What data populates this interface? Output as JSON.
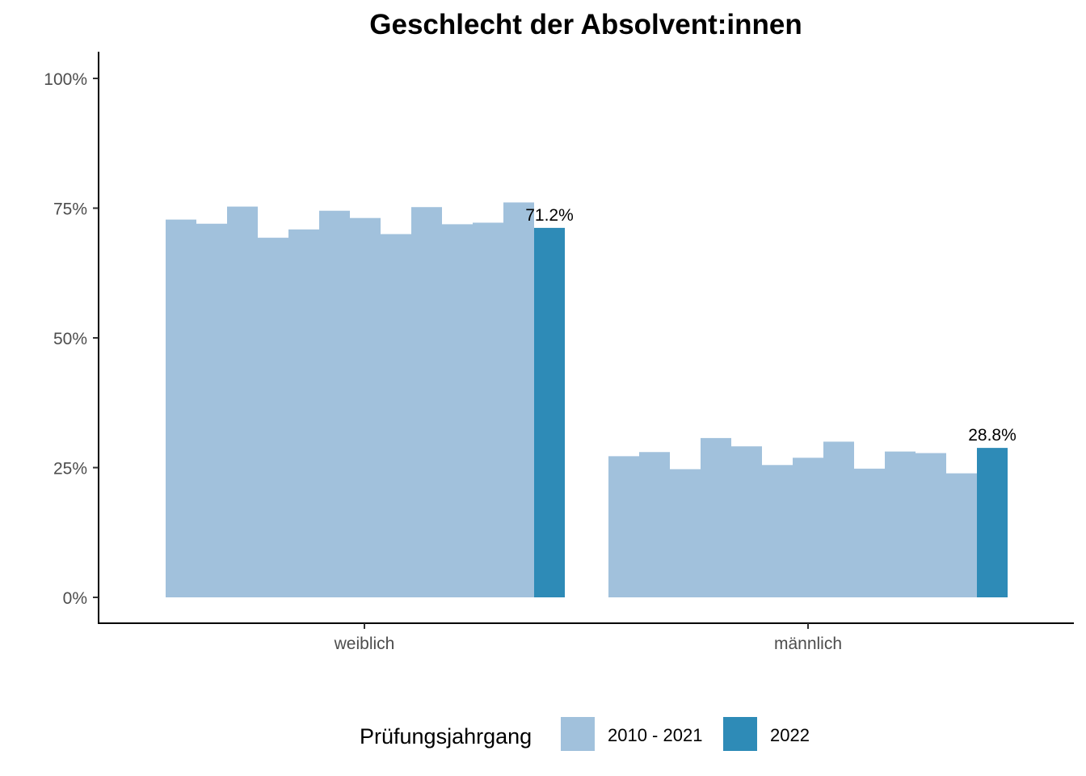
{
  "chart_data": {
    "type": "bar",
    "title": "Geschlecht der Absolvent:innen",
    "xlabel": "",
    "ylabel": "",
    "ylim": [
      -0.05,
      1.05
    ],
    "yticks": [
      0,
      0.25,
      0.5,
      0.75,
      1.0
    ],
    "ytick_labels": [
      "0%",
      "25%",
      "50%",
      "75%",
      "100%"
    ],
    "categories": [
      "weiblich",
      "männlich"
    ],
    "years": [
      "2010",
      "2011",
      "2012",
      "2013",
      "2014",
      "2015",
      "2016",
      "2017",
      "2018",
      "2019",
      "2020",
      "2021",
      "2022"
    ],
    "groups": [
      {
        "category": "weiblich",
        "values": [
          0.728,
          0.72,
          0.753,
          0.693,
          0.709,
          0.745,
          0.731,
          0.7,
          0.752,
          0.719,
          0.722,
          0.761,
          0.712
        ],
        "label": "71.2%"
      },
      {
        "category": "männlich",
        "values": [
          0.272,
          0.28,
          0.247,
          0.307,
          0.291,
          0.255,
          0.269,
          0.3,
          0.248,
          0.281,
          0.278,
          0.239,
          0.288
        ],
        "label": "28.8%"
      }
    ],
    "legend": {
      "title": "Prüfungsjahrgang",
      "position": "bottom",
      "entries": [
        {
          "name": "2010 - 2021",
          "color": "#a1c1dc"
        },
        {
          "name": "2022",
          "color": "#2e8bb7"
        }
      ]
    },
    "colors": {
      "past": "#a1c1dc",
      "current": "#2e8bb7"
    }
  }
}
